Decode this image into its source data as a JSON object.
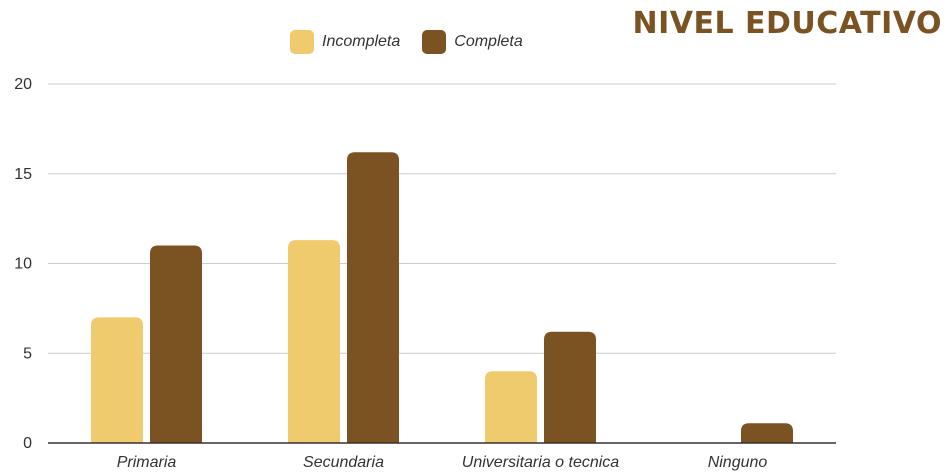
{
  "header": {
    "title": "NIVEL EDUCATIVO"
  },
  "legend": {
    "items": [
      {
        "label": "Incompleta",
        "color": "#f0cb6e"
      },
      {
        "label": "Completa",
        "color": "#7b5222"
      }
    ]
  },
  "colors": {
    "grid": "#cccccc",
    "axis": "#333333",
    "text": "#333333"
  },
  "chart_data": {
    "type": "bar",
    "title": "",
    "xlabel": "",
    "ylabel": "",
    "ylim": [
      0,
      20
    ],
    "yticks": [
      0,
      5,
      10,
      15,
      20
    ],
    "grid": true,
    "legend_position": "top-center",
    "categories": [
      "Primaria",
      "Secundaria",
      "Universitaria o tecnica",
      "Ninguno"
    ],
    "series": [
      {
        "name": "Incompleta",
        "color": "#f0cb6e",
        "values": [
          7,
          11.3,
          4,
          0
        ]
      },
      {
        "name": "Completa",
        "color": "#7b5222",
        "values": [
          11,
          16.2,
          6.2,
          1.1
        ]
      }
    ]
  }
}
